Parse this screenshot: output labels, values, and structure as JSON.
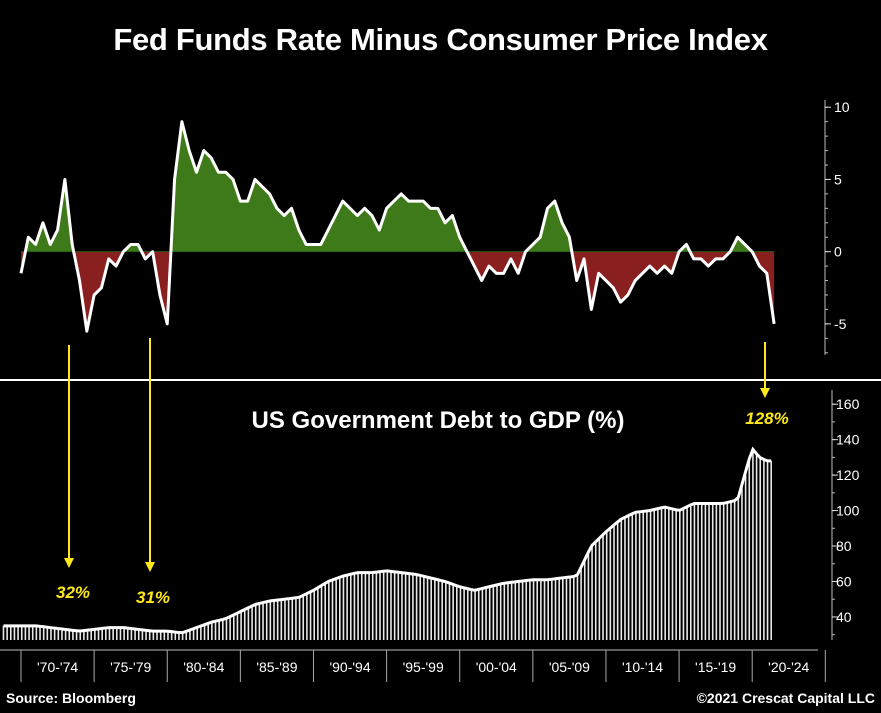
{
  "page": {
    "title": "Fed Funds Rate Minus Consumer Price Index",
    "source": "Source: Bloomberg",
    "copyright": "©2021 Crescat Capital LLC"
  },
  "colors": {
    "positive_fill": "#3f7a1a",
    "negative_fill": "#8a1f1f",
    "line": "#ffffff",
    "debt_bars": "#e8e8e8",
    "annotation": "#ffe81a",
    "separator": "#ffffff"
  },
  "annotations": {
    "a1": "32%",
    "a2": "31%",
    "a3": "128%"
  },
  "chart_data": [
    {
      "type": "area",
      "title": "Fed Funds Rate Minus Consumer Price Index",
      "ylim": [
        -7.5,
        10.5
      ],
      "yticks": [
        10,
        5,
        0,
        -5
      ],
      "ytick_labels": [
        "10",
        "5",
        "0",
        "-5"
      ],
      "x": [
        1970.0,
        1970.5,
        1971.0,
        1971.5,
        1972.0,
        1972.5,
        1973.0,
        1973.5,
        1974.0,
        1974.5,
        1975.0,
        1975.5,
        1976.0,
        1976.5,
        1977.0,
        1977.5,
        1978.0,
        1978.5,
        1979.0,
        1979.5,
        1980.0,
        1980.5,
        1981.0,
        1981.5,
        1982.0,
        1982.5,
        1983.0,
        1983.5,
        1984.0,
        1984.5,
        1985.0,
        1985.5,
        1986.0,
        1986.5,
        1987.0,
        1987.5,
        1988.0,
        1988.5,
        1989.0,
        1989.5,
        1990.0,
        1990.5,
        1991.0,
        1991.5,
        1992.0,
        1992.5,
        1993.0,
        1993.5,
        1994.0,
        1994.5,
        1995.0,
        1995.5,
        1996.0,
        1996.5,
        1997.0,
        1997.5,
        1998.0,
        1998.5,
        1999.0,
        1999.5,
        2000.0,
        2000.5,
        2001.0,
        2001.5,
        2002.0,
        2002.5,
        2003.0,
        2003.5,
        2004.0,
        2004.5,
        2005.0,
        2005.5,
        2006.0,
        2006.5,
        2007.0,
        2007.5,
        2008.0,
        2008.5,
        2009.0,
        2009.5,
        2010.0,
        2010.5,
        2011.0,
        2011.5,
        2012.0,
        2012.5,
        2013.0,
        2013.5,
        2014.0,
        2014.5,
        2015.0,
        2015.5,
        2016.0,
        2016.5,
        2017.0,
        2017.5,
        2018.0,
        2018.5,
        2019.0,
        2019.5,
        2020.0,
        2020.5,
        2021.0,
        2021.5
      ],
      "y": [
        -1.5,
        1.0,
        0.5,
        2.0,
        0.5,
        1.5,
        5.0,
        0.5,
        -2.0,
        -5.5,
        -3.0,
        -2.5,
        -0.5,
        -1.0,
        0.0,
        0.5,
        0.5,
        -0.5,
        0.0,
        -3.0,
        -5.0,
        5.0,
        9.0,
        7.0,
        5.5,
        7.0,
        6.5,
        5.5,
        5.5,
        5.0,
        3.5,
        3.5,
        5.0,
        4.5,
        4.0,
        3.0,
        2.5,
        3.0,
        1.5,
        0.5,
        0.5,
        0.5,
        1.5,
        2.5,
        3.5,
        3.0,
        2.5,
        3.0,
        2.5,
        1.5,
        3.0,
        3.5,
        4.0,
        3.5,
        3.5,
        3.5,
        3.0,
        3.0,
        2.0,
        2.5,
        1.0,
        0.0,
        -1.0,
        -2.0,
        -1.0,
        -1.5,
        -1.5,
        -0.5,
        -1.5,
        0.0,
        0.5,
        1.0,
        3.0,
        3.5,
        2.0,
        1.0,
        -2.0,
        -0.5,
        -4.0,
        -1.5,
        -2.0,
        -2.5,
        -3.5,
        -3.0,
        -2.0,
        -1.5,
        -1.0,
        -1.5,
        -1.0,
        -1.5,
        0.0,
        0.5,
        -0.5,
        -0.5,
        -1.0,
        -0.5,
        -0.5,
        0.0,
        1.0,
        0.5,
        0.0,
        -1.0,
        -1.5,
        -5.0
      ]
    },
    {
      "type": "bar",
      "title": "US Government Debt to GDP (%)",
      "ylim": [
        27,
        168
      ],
      "yticks": [
        160,
        140,
        120,
        100,
        80,
        60,
        40
      ],
      "ytick_labels": [
        "160",
        "140",
        "120",
        "100",
        "80",
        "60",
        "40"
      ],
      "x": [
        1970.0,
        1971.0,
        1972.0,
        1973.0,
        1974.0,
        1975.0,
        1976.0,
        1977.0,
        1978.0,
        1979.0,
        1980.0,
        1981.0,
        1982.0,
        1983.0,
        1984.0,
        1985.0,
        1986.0,
        1987.0,
        1988.0,
        1989.0,
        1990.0,
        1991.0,
        1992.0,
        1993.0,
        1994.0,
        1995.0,
        1996.0,
        1997.0,
        1998.0,
        1999.0,
        2000.0,
        2001.0,
        2002.0,
        2003.0,
        2004.0,
        2005.0,
        2006.0,
        2007.0,
        2008.0,
        2009.0,
        2010.0,
        2011.0,
        2012.0,
        2013.0,
        2014.0,
        2015.0,
        2016.0,
        2017.0,
        2018.0,
        2019.0,
        2020.0,
        2020.5,
        2021.0,
        2021.5
      ],
      "values": [
        35,
        35,
        34,
        33,
        32,
        33,
        34,
        34,
        33,
        32,
        32,
        31,
        34,
        37,
        39,
        43,
        47,
        49,
        50,
        51,
        55,
        60,
        63,
        65,
        65,
        66,
        65,
        64,
        62,
        60,
        57,
        55,
        57,
        59,
        60,
        61,
        61,
        62,
        63,
        80,
        88,
        95,
        99,
        100,
        102,
        100,
        104,
        104,
        104,
        106,
        135,
        130,
        128,
        128
      ],
      "annotations": [
        {
          "x": 1974.0,
          "label": "32%"
        },
        {
          "x": 1980.5,
          "label": "31%"
        },
        {
          "x": 2021.5,
          "label": "128%"
        }
      ]
    }
  ],
  "x_axis": {
    "tick_labels": [
      "'70-'74",
      "'75-'79",
      "'80-'84",
      "'85-'89",
      "'90-'94",
      "'95-'99",
      "'00-'04",
      "'05-'09",
      "'10-'14",
      "'15-'19",
      "'20-'24"
    ]
  }
}
